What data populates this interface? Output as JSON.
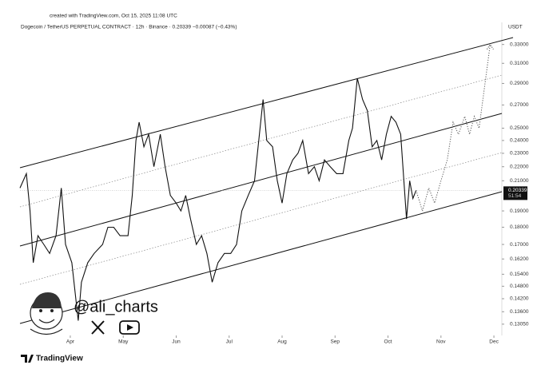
{
  "chart_data": {
    "type": "line",
    "subtitle": "created with TradingView.com, Oct 15, 2025 11:08 UTC",
    "title": "Dogecoin / TetherUS PERPETUAL CONTRACT · 12h · Binance · 0.20339 −0.00087 (−0.43%)",
    "y_unit": "USDT",
    "log_scale": true,
    "grid": false,
    "color": "#111111",
    "x": [
      3.05,
      3.17,
      3.24,
      3.3,
      3.39,
      3.5,
      3.61,
      3.73,
      3.83,
      3.91,
      4.03,
      4.15,
      4.21,
      4.33,
      4.45,
      4.61,
      4.71,
      4.82,
      4.94,
      5.09,
      5.17,
      5.24,
      5.3,
      5.39,
      5.48,
      5.58,
      5.7,
      5.79,
      5.89,
      6.0,
      6.09,
      6.18,
      6.27,
      6.38,
      6.48,
      6.58,
      6.68,
      6.79,
      6.91,
      7.03,
      7.14,
      7.24,
      7.36,
      7.48,
      7.56,
      7.64,
      7.71,
      7.82,
      7.91,
      8.0,
      8.09,
      8.2,
      8.3,
      8.39,
      8.5,
      8.61,
      8.7,
      8.8,
      8.91,
      9.03,
      9.15,
      9.26,
      9.33,
      9.42,
      9.52,
      9.61,
      9.7,
      9.79,
      9.88,
      9.97,
      10.06,
      10.15,
      10.24,
      10.3,
      10.35,
      10.41,
      10.47,
      10.53
    ],
    "values": [
      0.205,
      0.215,
      0.19,
      0.16,
      0.175,
      0.17,
      0.165,
      0.175,
      0.205,
      0.17,
      0.16,
      0.132,
      0.15,
      0.16,
      0.165,
      0.17,
      0.18,
      0.18,
      0.175,
      0.175,
      0.2,
      0.24,
      0.255,
      0.235,
      0.245,
      0.22,
      0.245,
      0.22,
      0.2,
      0.195,
      0.19,
      0.2,
      0.185,
      0.17,
      0.175,
      0.165,
      0.15,
      0.16,
      0.165,
      0.165,
      0.17,
      0.19,
      0.2,
      0.21,
      0.24,
      0.275,
      0.24,
      0.235,
      0.21,
      0.195,
      0.215,
      0.225,
      0.23,
      0.24,
      0.215,
      0.22,
      0.21,
      0.225,
      0.22,
      0.215,
      0.215,
      0.24,
      0.25,
      0.295,
      0.275,
      0.265,
      0.235,
      0.24,
      0.225,
      0.245,
      0.26,
      0.255,
      0.245,
      0.21,
      0.185,
      0.21,
      0.198,
      0.2034
    ],
    "projection": {
      "color": "#555555",
      "x": [
        10.53,
        10.65,
        10.77,
        10.88,
        11.0,
        11.12,
        11.23,
        11.33,
        11.45,
        11.54,
        11.63,
        11.72,
        11.93
      ],
      "values": [
        0.2034,
        0.19,
        0.205,
        0.195,
        0.21,
        0.225,
        0.255,
        0.245,
        0.26,
        0.245,
        0.26,
        0.25,
        0.33
      ]
    },
    "last_price": {
      "value": 0.20339,
      "label": "0.20339"
    },
    "countdown": "51:54",
    "xlim": [
      3.05,
      12.15
    ],
    "ylim": [
      0.1257,
      0.344
    ],
    "xticks": [
      {
        "value": 4,
        "label": "Apr"
      },
      {
        "value": 5,
        "label": "May"
      },
      {
        "value": 6,
        "label": "Jun"
      },
      {
        "value": 7,
        "label": "Jul"
      },
      {
        "value": 8,
        "label": "Aug"
      },
      {
        "value": 9,
        "label": "Sep"
      },
      {
        "value": 10,
        "label": "Oct"
      },
      {
        "value": 11,
        "label": "Nov"
      },
      {
        "value": 12,
        "label": "Dec"
      }
    ],
    "yticks": [
      {
        "value": 0.33,
        "label": "0.33000"
      },
      {
        "value": 0.31,
        "label": "0.31000"
      },
      {
        "value": 0.29,
        "label": "0.29000"
      },
      {
        "value": 0.27,
        "label": "0.27000"
      },
      {
        "value": 0.25,
        "label": "0.25000"
      },
      {
        "value": 0.24,
        "label": "0.24000"
      },
      {
        "value": 0.23,
        "label": "0.23000"
      },
      {
        "value": 0.22,
        "label": "0.22000"
      },
      {
        "value": 0.21,
        "label": "0.21000"
      },
      {
        "value": 0.19,
        "label": "0.19000"
      },
      {
        "value": 0.18,
        "label": "0.18000"
      },
      {
        "value": 0.17,
        "label": "0.17000"
      },
      {
        "value": 0.162,
        "label": "0.16200"
      },
      {
        "value": 0.154,
        "label": "0.15400"
      },
      {
        "value": 0.148,
        "label": "0.14800"
      },
      {
        "value": 0.142,
        "label": "0.14200"
      },
      {
        "value": 0.136,
        "label": "0.13600"
      },
      {
        "value": 0.1305,
        "label": "0.13050"
      }
    ]
  },
  "watermark": {
    "handle": "@ali_charts"
  },
  "footer": {
    "brand": "TradingView"
  }
}
